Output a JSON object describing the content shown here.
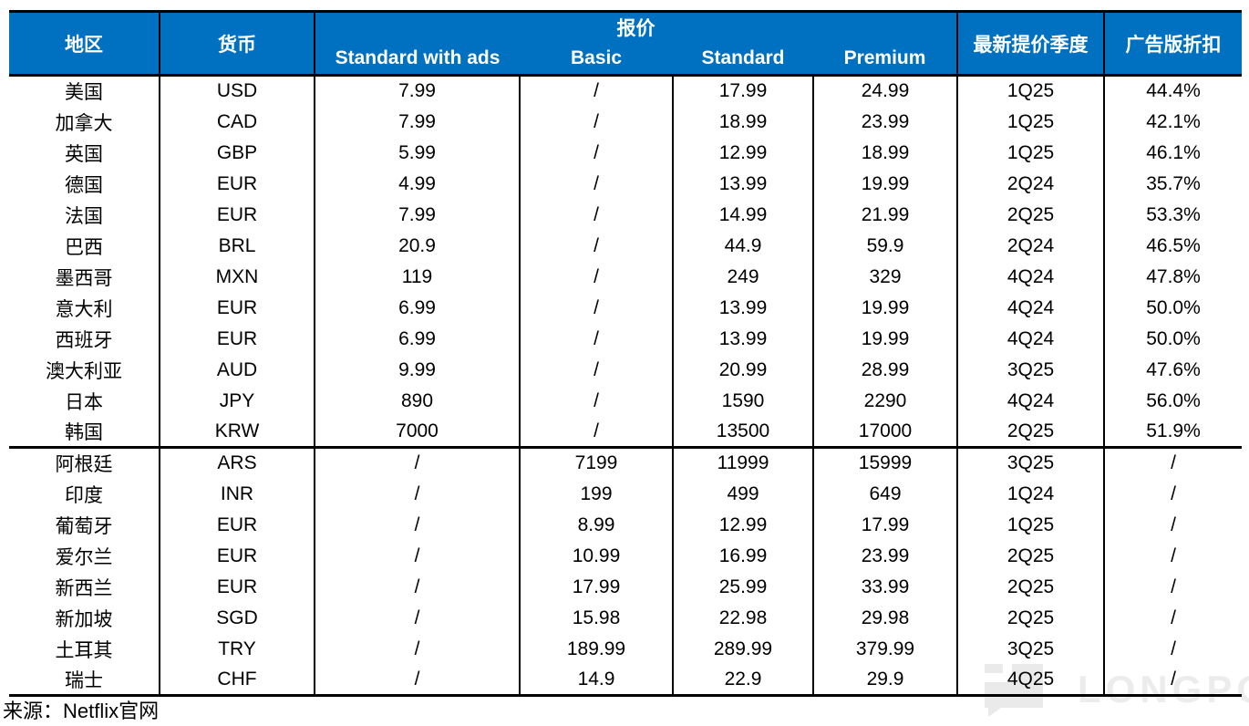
{
  "colors": {
    "header_bg": "#0070C0",
    "header_text": "#FFFFFF",
    "border": "#000000",
    "watermark": "#ECECEC"
  },
  "watermark": {
    "text": "LONGPORT",
    "logo": "longport-logo"
  },
  "footer": {
    "source": "来源：Netflix官网"
  },
  "chart_data": {
    "type": "table",
    "title": "",
    "header": {
      "region": "地区",
      "currency": "货币",
      "quote_group": "报价",
      "quote_cols": [
        "Standard with ads",
        "Basic",
        "Standard",
        "Premium"
      ],
      "latest_quarter": "最新提价季度",
      "ads_discount": "广告版折扣"
    },
    "column_keys": [
      "region",
      "currency",
      "standard-with-ads",
      "basic",
      "standard",
      "premium",
      "latest-quarter",
      "ads-discount"
    ],
    "sections": [
      {
        "rows": [
          [
            "美国",
            "USD",
            "7.99",
            "/",
            "17.99",
            "24.99",
            "1Q25",
            "44.4%"
          ],
          [
            "加拿大",
            "CAD",
            "7.99",
            "/",
            "18.99",
            "23.99",
            "1Q25",
            "42.1%"
          ],
          [
            "英国",
            "GBP",
            "5.99",
            "/",
            "12.99",
            "18.99",
            "1Q25",
            "46.1%"
          ],
          [
            "德国",
            "EUR",
            "4.99",
            "/",
            "13.99",
            "19.99",
            "2Q24",
            "35.7%"
          ],
          [
            "法国",
            "EUR",
            "7.99",
            "/",
            "14.99",
            "21.99",
            "2Q25",
            "53.3%"
          ],
          [
            "巴西",
            "BRL",
            "20.9",
            "/",
            "44.9",
            "59.9",
            "2Q24",
            "46.5%"
          ],
          [
            "墨西哥",
            "MXN",
            "119",
            "/",
            "249",
            "329",
            "4Q24",
            "47.8%"
          ],
          [
            "意大利",
            "EUR",
            "6.99",
            "/",
            "13.99",
            "19.99",
            "4Q24",
            "50.0%"
          ],
          [
            "西班牙",
            "EUR",
            "6.99",
            "/",
            "13.99",
            "19.99",
            "4Q24",
            "50.0%"
          ],
          [
            "澳大利亚",
            "AUD",
            "9.99",
            "/",
            "20.99",
            "28.99",
            "3Q25",
            "47.6%"
          ],
          [
            "日本",
            "JPY",
            "890",
            "/",
            "1590",
            "2290",
            "4Q24",
            "56.0%"
          ],
          [
            "韩国",
            "KRW",
            "7000",
            "/",
            "13500",
            "17000",
            "2Q25",
            "51.9%"
          ]
        ]
      },
      {
        "rows": [
          [
            "阿根廷",
            "ARS",
            "/",
            "7199",
            "11999",
            "15999",
            "3Q25",
            "/"
          ],
          [
            "印度",
            "INR",
            "/",
            "199",
            "499",
            "649",
            "1Q24",
            "/"
          ],
          [
            "葡萄牙",
            "EUR",
            "/",
            "8.99",
            "12.99",
            "17.99",
            "1Q25",
            "/"
          ],
          [
            "爱尔兰",
            "EUR",
            "/",
            "10.99",
            "16.99",
            "23.99",
            "2Q25",
            "/"
          ],
          [
            "新西兰",
            "EUR",
            "/",
            "17.99",
            "25.99",
            "33.99",
            "2Q25",
            "/"
          ],
          [
            "新加坡",
            "SGD",
            "/",
            "15.98",
            "22.98",
            "29.98",
            "2Q25",
            "/"
          ],
          [
            "土耳其",
            "TRY",
            "/",
            "189.99",
            "289.99",
            "379.99",
            "3Q25",
            "/"
          ],
          [
            "瑞士",
            "CHF",
            "/",
            "14.9",
            "22.9",
            "29.9",
            "4Q25",
            "/"
          ]
        ]
      }
    ]
  }
}
